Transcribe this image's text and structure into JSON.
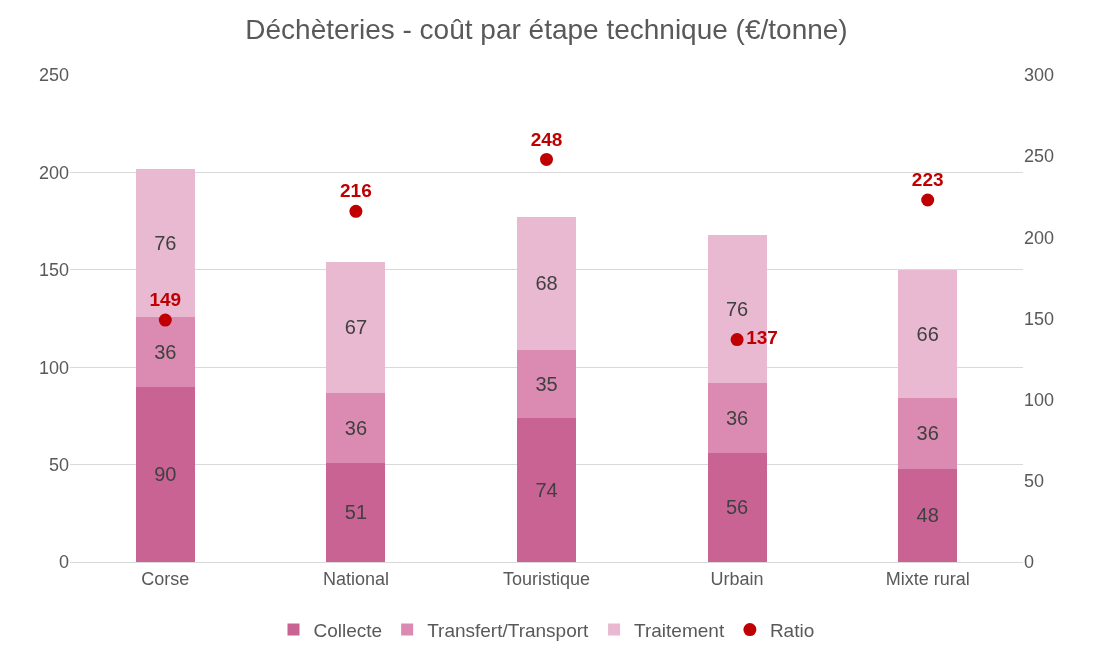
{
  "chart_data": {
    "type": "bar",
    "title": "Déchèteries - coût par étape technique (€/tonne)",
    "categories": [
      "Corse",
      "National",
      "Touristique",
      "Urbain",
      "Mixte rural"
    ],
    "stacked": true,
    "series": [
      {
        "name": "Collecte",
        "color": "#c96394",
        "values": [
          90,
          51,
          74,
          56,
          48
        ]
      },
      {
        "name": "Transfert/Transport",
        "color": "#db8bb1",
        "values": [
          36,
          36,
          35,
          36,
          36
        ]
      },
      {
        "name": "Traitement",
        "color": "#e8b9d0",
        "values": [
          76,
          67,
          68,
          76,
          66
        ]
      },
      {
        "name": "Ratio",
        "type": "scatter",
        "axis": "y2",
        "color": "#c00000",
        "values": [
          149,
          216,
          248,
          137,
          223
        ]
      }
    ],
    "ylim": [
      0,
      250
    ],
    "yticks": [
      0,
      50,
      100,
      150,
      200,
      250
    ],
    "y2lim": [
      0,
      300
    ],
    "y2ticks": [
      0,
      50,
      100,
      150,
      200,
      250,
      300
    ],
    "grid": "y",
    "legend": "bottom",
    "marker": "circle",
    "data_labels": true
  }
}
